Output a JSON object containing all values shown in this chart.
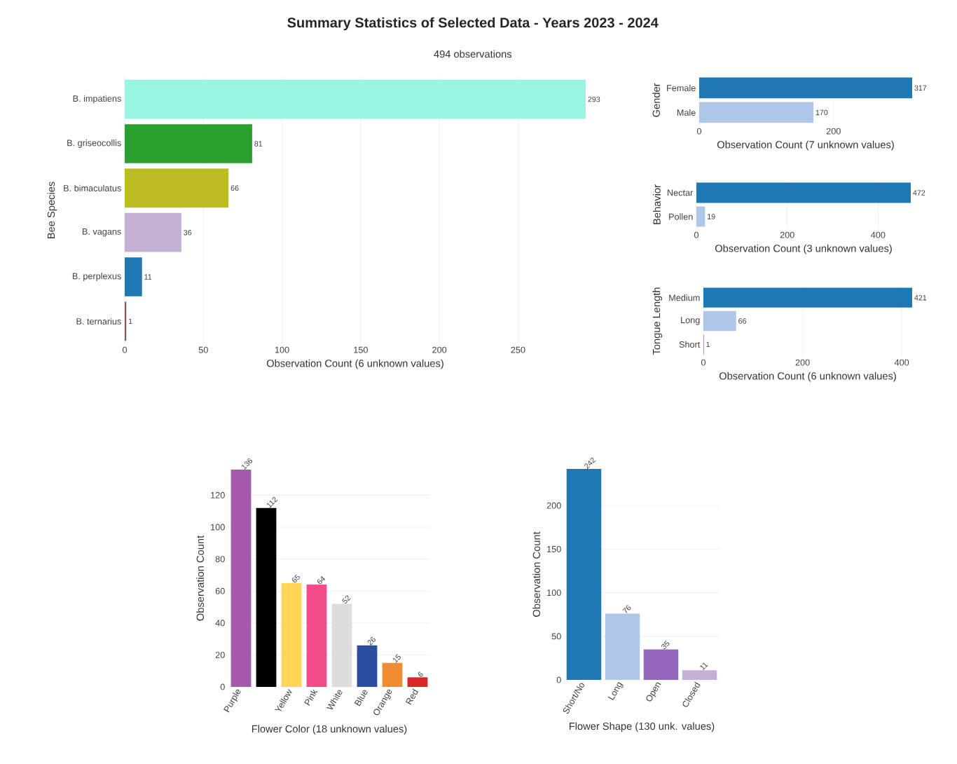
{
  "chart_data": [
    {
      "type": "bar",
      "orientation": "horizontal",
      "title": "Summary Statistics of Selected Data - Years 2023 - 2024",
      "subtitle": "494 observations",
      "ylabel": "Bee Species",
      "xlabel": "Observation Count (6 unknown values)",
      "categories": [
        "B. impatiens",
        "B. griseocollis",
        "B. bimaculatus",
        "B. vagans",
        "B. perplexus",
        "B. ternarius"
      ],
      "values": [
        293,
        81,
        66,
        36,
        11,
        1
      ],
      "colors": [
        "#98f5e1",
        "#2ca02c",
        "#bcbd22",
        "#c5b0d5",
        "#1f77b4",
        "#8c564b"
      ],
      "xlim": [
        0,
        293
      ],
      "xticks": [
        0,
        50,
        100,
        150,
        200,
        250
      ],
      "grid": "x",
      "data_labels": true
    },
    {
      "type": "bar",
      "orientation": "horizontal",
      "ylabel": "Gender",
      "xlabel": "Observation Count (7 unknown values)",
      "categories": [
        "Female",
        "Male"
      ],
      "values": [
        317,
        170
      ],
      "colors": [
        "#1f77b4",
        "#aec7e8"
      ],
      "xlim": [
        0,
        317
      ],
      "xticks": [
        0,
        200
      ],
      "grid": "x",
      "data_labels": true
    },
    {
      "type": "bar",
      "orientation": "horizontal",
      "ylabel": "Behavior",
      "xlabel": "Observation Count (3 unknown values)",
      "categories": [
        "Nectar",
        "Pollen"
      ],
      "values": [
        472,
        19
      ],
      "colors": [
        "#1f77b4",
        "#aec7e8"
      ],
      "xlim": [
        0,
        472
      ],
      "xticks": [
        0,
        200,
        400
      ],
      "grid": "x",
      "data_labels": true
    },
    {
      "type": "bar",
      "orientation": "horizontal",
      "ylabel": "Tongue Length",
      "xlabel": "Observation Count (6 unknown values)",
      "categories": [
        "Medium",
        "Long",
        "Short"
      ],
      "values": [
        421,
        66,
        1
      ],
      "colors": [
        "#1f77b4",
        "#aec7e8",
        "#9467bd"
      ],
      "xlim": [
        0,
        421
      ],
      "xticks": [
        0,
        200,
        400
      ],
      "grid": "x",
      "data_labels": true
    },
    {
      "type": "bar",
      "ylabel": "Observation Count",
      "xlabel": "Flower Color (18 unknown values)",
      "categories": [
        "Purple",
        null,
        "Yellow",
        "Pink",
        "White",
        "Blue",
        "Orange",
        "Red"
      ],
      "values": [
        136,
        112,
        65,
        64,
        52,
        26,
        15,
        6
      ],
      "colors": [
        "#a55aaa",
        "#000000",
        "#ffd555",
        "#ef4c89",
        "#dddddd",
        "#2a4fa0",
        "#f08c30",
        "#d62728"
      ],
      "ylim": [
        0,
        136
      ],
      "yticks": [
        0,
        20,
        40,
        60,
        80,
        100,
        120
      ],
      "grid": "y",
      "data_labels": true
    },
    {
      "type": "bar",
      "ylabel": "Observation Count",
      "xlabel": "Flower Shape (130 unk. values)",
      "categories": [
        "Short/No",
        "Long",
        "Open",
        "Closed"
      ],
      "values": [
        242,
        76,
        35,
        11
      ],
      "colors": [
        "#1f77b4",
        "#aec7e8",
        "#9467bd",
        "#c5b0d5"
      ],
      "ylim": [
        0,
        242
      ],
      "yticks": [
        0,
        50,
        100,
        150,
        200
      ],
      "grid": "y",
      "data_labels": true
    }
  ]
}
